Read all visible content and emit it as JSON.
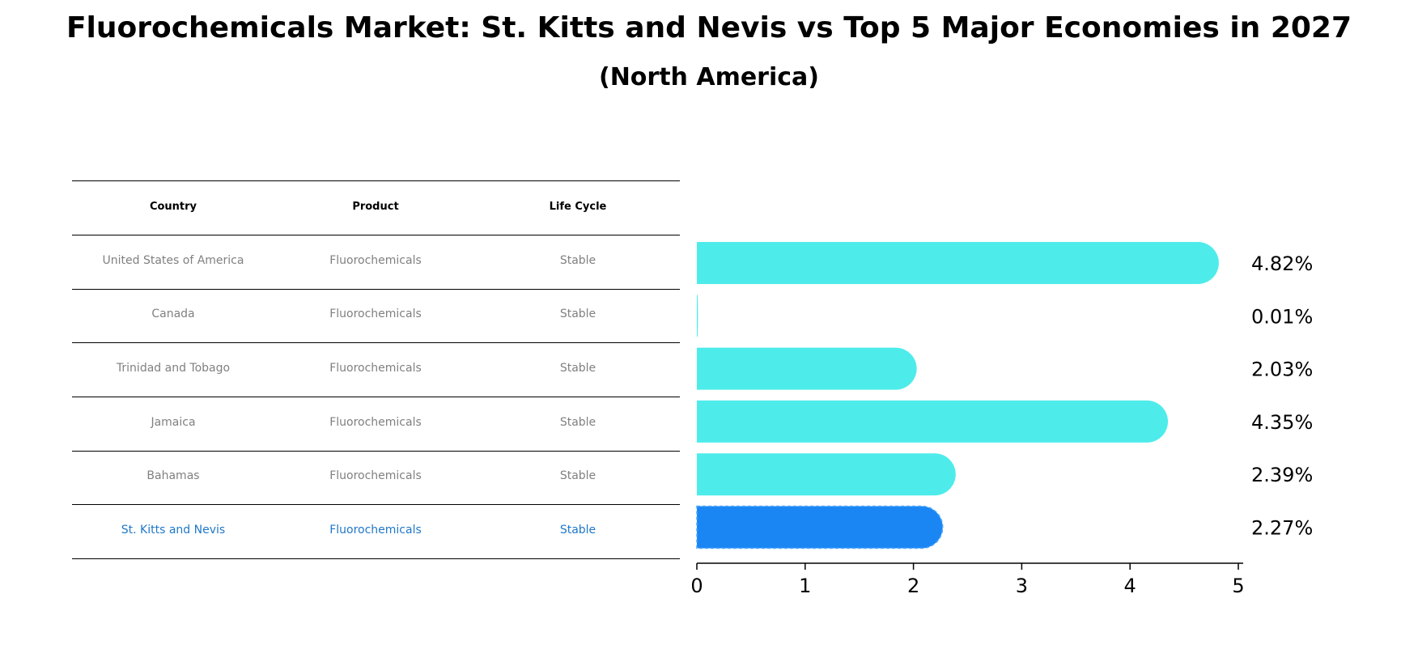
{
  "chart_data": {
    "type": "bar",
    "orientation": "horizontal",
    "title": "Fluorochemicals Market: St. Kitts and Nevis vs Top 5 Major Economies in 2027",
    "subtitle": "(North America)",
    "table": {
      "headers": [
        "Country",
        "Product",
        "Life Cycle"
      ],
      "rows": [
        [
          "United States of America",
          "Fluorochemicals",
          "Stable"
        ],
        [
          "Canada",
          "Fluorochemicals",
          "Stable"
        ],
        [
          "Trinidad and Tobago",
          "Fluorochemicals",
          "Stable"
        ],
        [
          "Jamaica",
          "Fluorochemicals",
          "Stable"
        ],
        [
          "Bahamas",
          "Fluorochemicals",
          "Stable"
        ],
        [
          "St. Kitts and Nevis",
          "Fluorochemicals",
          "Stable"
        ]
      ]
    },
    "categories": [
      "United States of America",
      "Canada",
      "Trinidad and Tobago",
      "Jamaica",
      "Bahamas",
      "St. Kitts and Nevis"
    ],
    "values": [
      4.82,
      0.01,
      2.03,
      4.35,
      2.39,
      2.27
    ],
    "value_labels": [
      "4.82%",
      "0.01%",
      "2.03%",
      "4.35%",
      "2.39%",
      "2.27%"
    ],
    "xlim": [
      0,
      5
    ],
    "xticks": [
      "0",
      "1",
      "2",
      "3",
      "4",
      "5"
    ],
    "highlight": "St. Kitts and Nevis",
    "colors": {
      "bar": "#4deceb",
      "highlight": "#1a86f4",
      "highlight_text": "#1f78c8",
      "text_muted": "#808080"
    }
  }
}
